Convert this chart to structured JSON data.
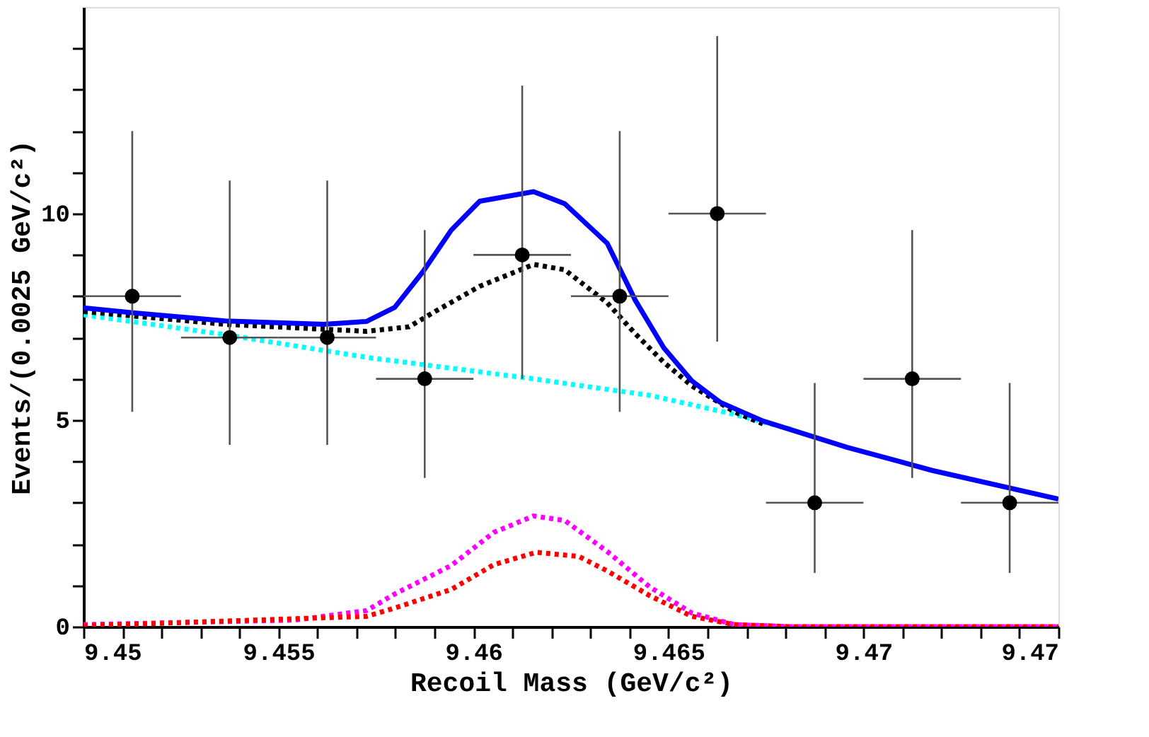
{
  "chart_data": {
    "type": "line",
    "xlabel": "Recoil Mass (GeV/c²)",
    "ylabel": "Events/(0.0025 GeV/c²)",
    "xlim": [
      9.45,
      9.475
    ],
    "ylim": [
      0,
      15
    ],
    "xticks": [
      9.45,
      {
        "value": 9.451,
        "label": null
      },
      {
        "value": 9.452,
        "label": null
      },
      {
        "value": 9.453,
        "label": null
      },
      {
        "value": 9.454,
        "label": null
      },
      9.455,
      {
        "value": 9.456,
        "label": null
      },
      {
        "value": 9.457,
        "label": null
      },
      {
        "value": 9.458,
        "label": null
      },
      {
        "value": 9.459,
        "label": null
      },
      9.46,
      {
        "value": 9.461,
        "label": null
      },
      {
        "value": 9.462,
        "label": null
      },
      {
        "value": 9.463,
        "label": null
      },
      {
        "value": 9.464,
        "label": null
      },
      9.465,
      {
        "value": 9.466,
        "label": null
      },
      {
        "value": 9.467,
        "label": null
      },
      {
        "value": 9.468,
        "label": null
      },
      {
        "value": 9.469,
        "label": null
      },
      9.47,
      {
        "value": 9.471,
        "label": null
      },
      {
        "value": 9.472,
        "label": null
      },
      {
        "value": 9.473,
        "label": null
      },
      {
        "value": 9.474,
        "label": null
      },
      {
        "value": 9.475,
        "label": "9.47"
      }
    ],
    "yticks": [
      0,
      {
        "value": 1,
        "label": null
      },
      {
        "value": 2,
        "label": null
      },
      {
        "value": 3,
        "label": null
      },
      {
        "value": 4,
        "label": null
      },
      5,
      {
        "value": 6,
        "label": null
      },
      {
        "value": 7,
        "label": null
      },
      {
        "value": 8,
        "label": null
      },
      {
        "value": 9,
        "label": null
      },
      10,
      {
        "value": 11,
        "label": null
      },
      {
        "value": 12,
        "label": null
      },
      {
        "value": 13,
        "label": null
      },
      {
        "value": 14,
        "label": null
      }
    ],
    "grid": false,
    "legend": false,
    "series": [
      {
        "color": "#00ffff",
        "line_style": "dotted",
        "x": [
          9.45,
          9.45363,
          9.45726,
          9.46154,
          9.46234,
          9.46452,
          9.46669,
          9.46814
        ],
        "values": [
          7.55,
          7.07,
          6.52,
          6.0,
          5.89,
          5.6,
          5.14,
          4.78
        ]
      },
      {
        "color": "#ff00ff",
        "line_style": "dotted",
        "x": [
          9.45,
          9.45544,
          9.45726,
          9.45798,
          9.45943,
          9.46052,
          9.46154,
          9.46234,
          9.46343,
          9.46452,
          9.4656,
          9.46669,
          9.46814,
          9.475
        ],
        "values": [
          0.05,
          0.16,
          0.39,
          0.79,
          1.48,
          2.28,
          2.68,
          2.57,
          1.82,
          0.96,
          0.33,
          0.05,
          0,
          0
        ]
      },
      {
        "color": "#ff0000",
        "line_style": "dotted",
        "x": [
          9.45,
          9.45726,
          9.45798,
          9.45943,
          9.46052,
          9.46161,
          9.4627,
          9.46343,
          9.46452,
          9.4656,
          9.46669,
          9.46814,
          9.475
        ],
        "values": [
          0.02,
          0.25,
          0.45,
          0.9,
          1.5,
          1.8,
          1.7,
          1.35,
          0.75,
          0.25,
          0.05,
          0,
          0
        ]
      },
      {
        "color": "#000000",
        "line_style": "dotted",
        "x": [
          9.45,
          9.45363,
          9.45617,
          9.45726,
          9.45835,
          9.45907,
          9.46016,
          9.46154,
          9.46234,
          9.46343,
          9.46415,
          9.46488,
          9.4656,
          9.46669,
          9.46742
        ],
        "values": [
          7.63,
          7.32,
          7.2,
          7.15,
          7.26,
          7.66,
          8.24,
          8.77,
          8.64,
          7.84,
          7.09,
          6.4,
          5.83,
          5.2,
          4.91
        ]
      },
      {
        "color": "#0000ff",
        "line_style": "solid",
        "x": [
          9.45,
          9.45127,
          9.45363,
          9.45617,
          9.45726,
          9.45798,
          9.45871,
          9.45943,
          9.46016,
          9.46154,
          9.46234,
          9.46343,
          9.46415,
          9.46488,
          9.4656,
          9.46633,
          9.46742,
          9.46959,
          9.47177,
          9.475
        ],
        "values": [
          7.72,
          7.6,
          7.4,
          7.32,
          7.39,
          7.73,
          8.6,
          9.6,
          10.3,
          10.53,
          10.24,
          9.28,
          7.9,
          6.75,
          5.95,
          5.43,
          4.98,
          4.34,
          3.78,
          3.09
        ]
      },
      {
        "type": "scatter",
        "color": "#000000",
        "marker": "circle",
        "x": [
          9.45125,
          9.45375,
          9.45625,
          9.45875,
          9.46125,
          9.46375,
          9.46625,
          9.46875,
          9.47125,
          9.47375
        ],
        "values": [
          8,
          7,
          7,
          6,
          9,
          8,
          10,
          3,
          6,
          3
        ],
        "errors": [
          [
            5.2,
            12.0
          ],
          [
            4.4,
            10.8
          ],
          [
            4.4,
            10.8
          ],
          [
            3.6,
            9.6
          ],
          [
            6.0,
            13.1
          ],
          [
            5.2,
            12.0
          ],
          [
            6.9,
            14.3
          ],
          [
            1.3,
            5.9
          ],
          [
            3.6,
            9.6
          ],
          [
            1.3,
            5.9
          ]
        ],
        "xerrors": [
          0.00125,
          0.00125,
          0.00125,
          0.00125,
          0.00125,
          0.00125,
          0.00125,
          0.00125,
          0.00125,
          0.00125
        ]
      }
    ]
  }
}
